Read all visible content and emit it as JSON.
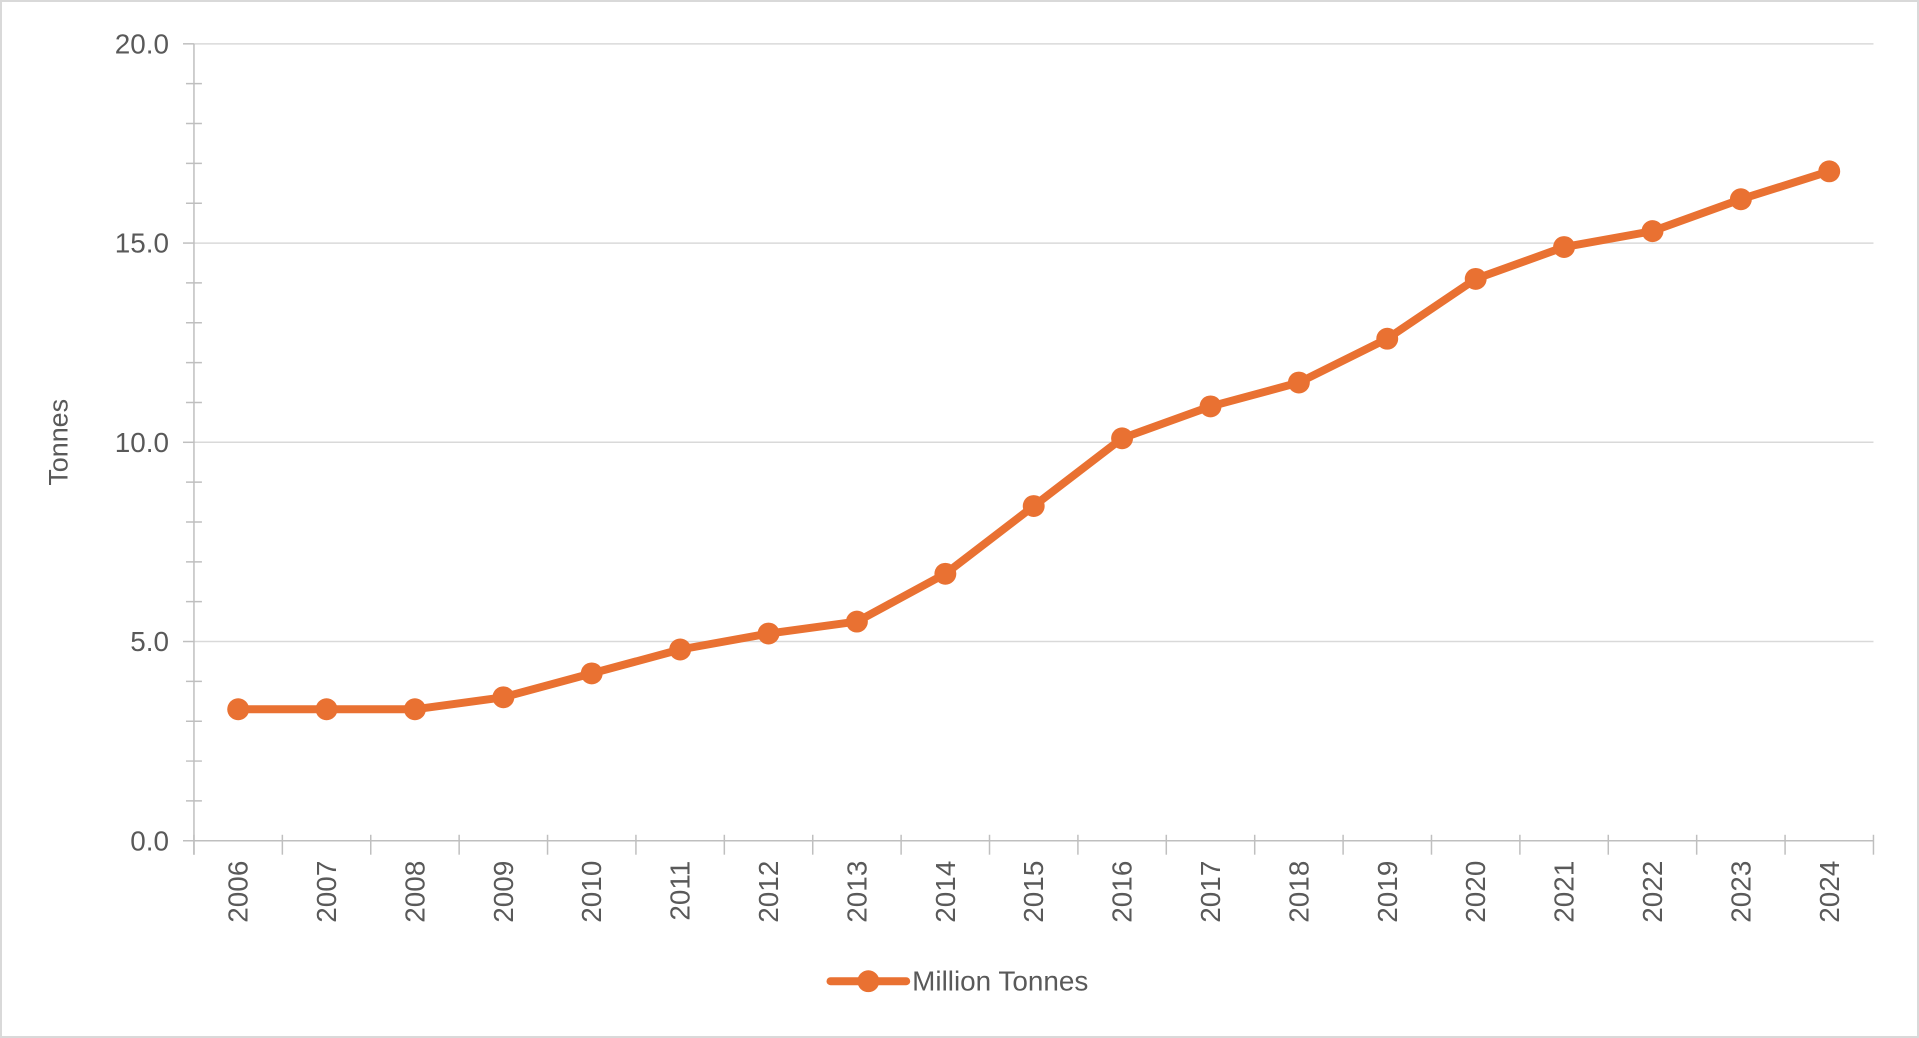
{
  "chart_data": {
    "type": "line",
    "title": "",
    "xlabel": "",
    "ylabel": "Tonnes",
    "categories": [
      "2006",
      "2007",
      "2008",
      "2009",
      "2010",
      "2011",
      "2012",
      "2013",
      "2014",
      "2015",
      "2016",
      "2017",
      "2018",
      "2019",
      "2020",
      "2021",
      "2022",
      "2023",
      "2024"
    ],
    "series": [
      {
        "name": "Million Tonnes",
        "values": [
          3.3,
          3.3,
          3.3,
          3.6,
          4.2,
          4.8,
          5.2,
          5.5,
          6.7,
          8.4,
          10.1,
          10.9,
          11.5,
          12.6,
          14.1,
          14.9,
          15.3,
          16.1,
          16.8
        ]
      }
    ],
    "ylim": [
      0,
      20
    ],
    "y_major_step": 5,
    "y_minor_step": 1,
    "y_tick_labels": [
      "0.0",
      "5.0",
      "10.0",
      "15.0",
      "20.0"
    ],
    "x_tick_label_rotation_degrees": -90,
    "grid": "horizontal-major",
    "legend_position": "bottom-center",
    "marker": "circle",
    "colors": {
      "accent": "#E97132",
      "grid": "#d9d9d9",
      "axis": "#bfbfbf",
      "text": "#595959",
      "background": "#ffffff",
      "border": "#d9d9d9"
    }
  }
}
